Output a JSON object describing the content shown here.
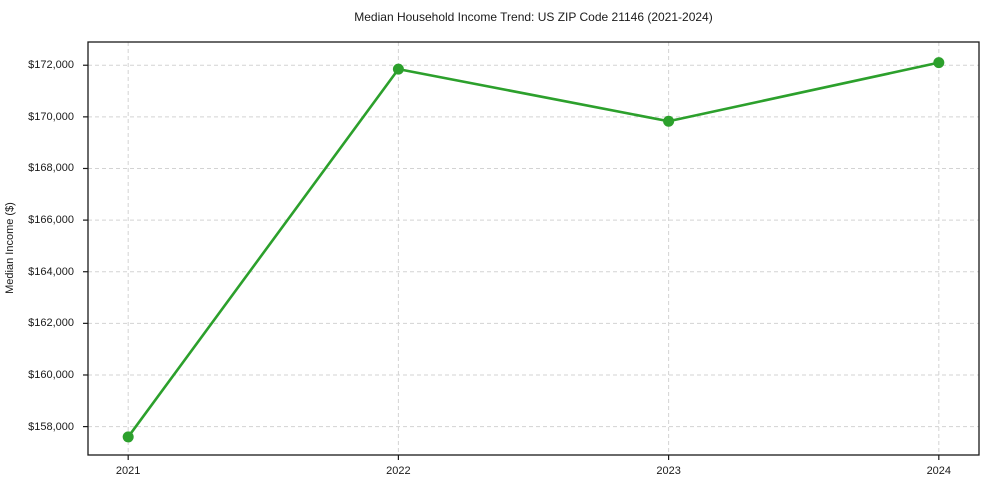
{
  "figure": {
    "background": "#ffffff"
  },
  "colors": {
    "line": "#2ca02c",
    "grid": "#d3d3d3",
    "spine": "#1a1a1a",
    "tick_label": "#1a1a1a"
  },
  "chart_data": {
    "type": "line",
    "title": "Median Household Income Trend: US ZIP Code 21146 (2021-2024)",
    "xlabel": "",
    "ylabel": "Median Income ($)",
    "categories": [
      "2021",
      "2022",
      "2023",
      "2024"
    ],
    "series": [
      {
        "name": "Median Household Income",
        "values": [
          157600,
          171850,
          169830,
          172100
        ]
      }
    ],
    "ylim": [
      156900,
      172900
    ],
    "yticks": [
      158000,
      160000,
      162000,
      164000,
      166000,
      168000,
      170000,
      172000
    ],
    "ytick_labels": [
      "$158,000",
      "$160,000",
      "$162,000",
      "$164,000",
      "$166,000",
      "$168,000",
      "$170,000",
      "$172,000"
    ],
    "grid": true,
    "grid_style": "dashed",
    "legend": "none",
    "line_color": "#2ca02c",
    "marker": "circle"
  }
}
